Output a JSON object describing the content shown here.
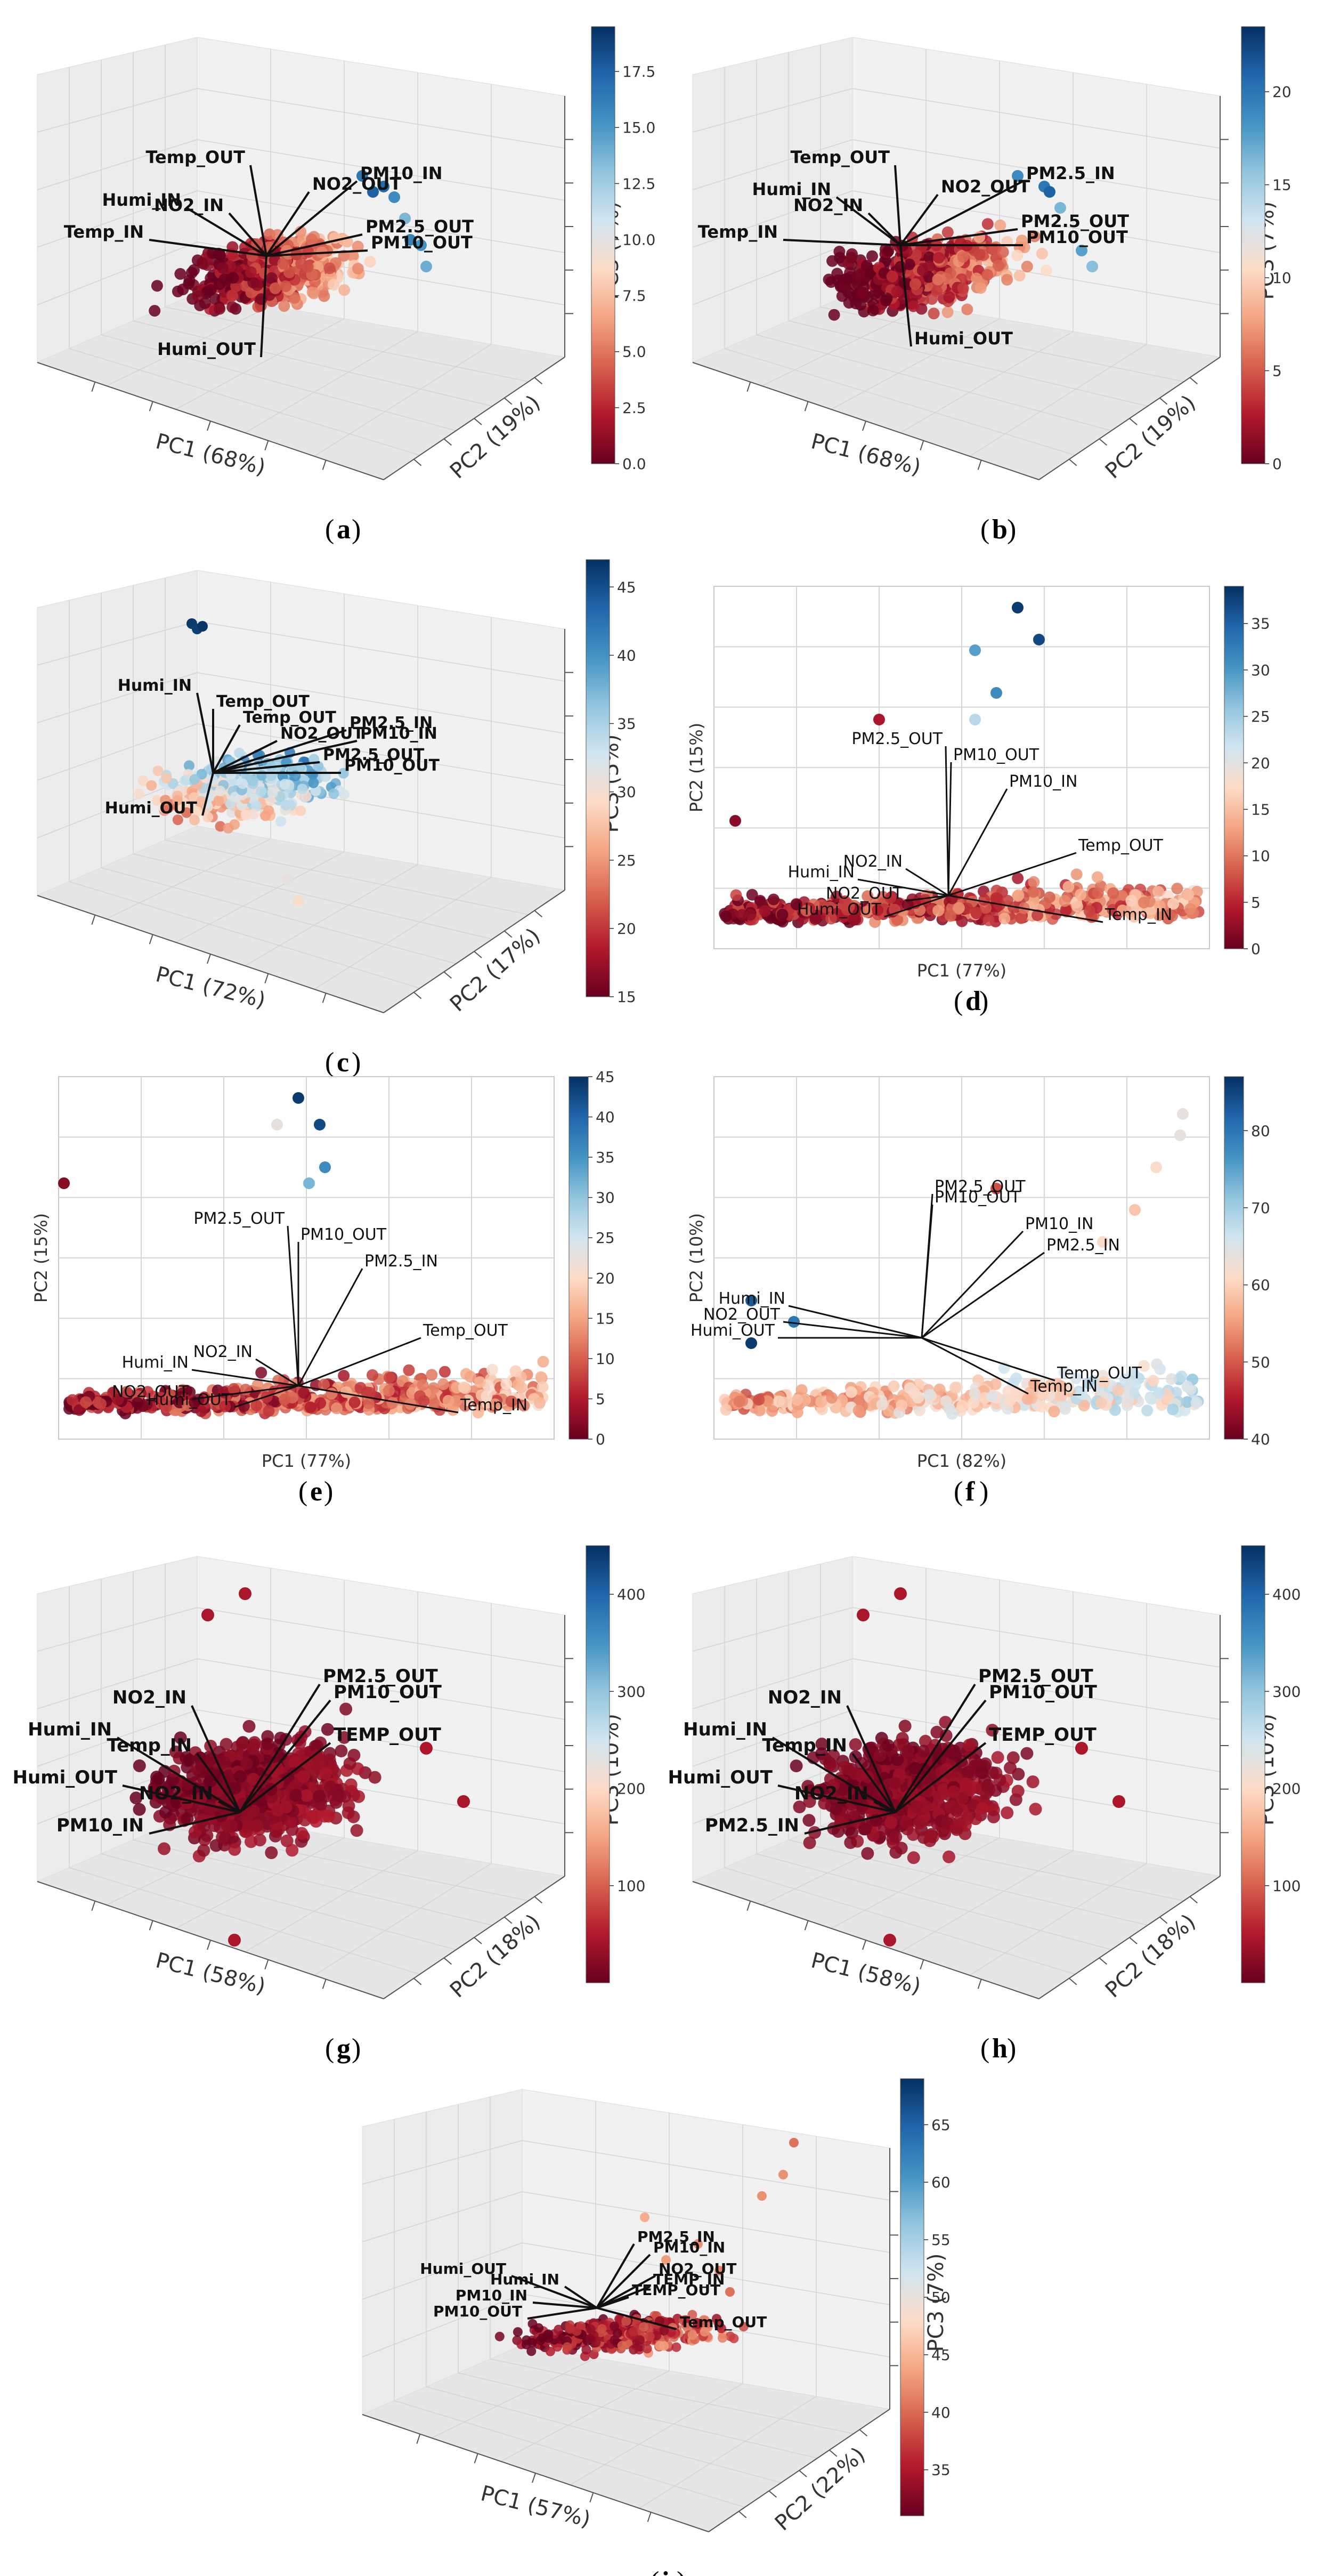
{
  "figure": {
    "panel_letters": [
      "a",
      "b",
      "c",
      "d",
      "e",
      "f",
      "g",
      "h",
      "i"
    ]
  },
  "chart_data": [
    {
      "panel": "a",
      "type": "scatter3d",
      "xlabel": "PC1 (68%)",
      "ylabel": "PC2 (19%)",
      "zlabel": "PC3 (7%)",
      "colorbar": {
        "min": 0,
        "max": 19.5,
        "ticks": [
          "0.0",
          "2.5",
          "5.0",
          "7.5",
          "10.0",
          "12.5",
          "15.0",
          "17.5"
        ]
      },
      "loadings": [
        "Temp_OUT",
        "PM10_IN",
        "NO2_OUT",
        "Humi_IN",
        "NO2_IN",
        "Temp_IN",
        "PM2.5_OUT",
        "PM10_OUT",
        "Humi_OUT"
      ]
    },
    {
      "panel": "b",
      "type": "scatter3d",
      "xlabel": "PC1 (68%)",
      "ylabel": "PC2 (19%)",
      "zlabel": "PC3 (7%)",
      "colorbar": {
        "min": 0,
        "max": 23.5,
        "ticks": [
          "0",
          "5",
          "10",
          "15",
          "20"
        ]
      },
      "loadings": [
        "Temp_OUT",
        "PM2.5_IN",
        "Humi_IN",
        "NO2_OUT",
        "NO2_IN",
        "PM2.5_OUT",
        "PM10_OUT",
        "Temp_IN",
        "Humi_OUT"
      ]
    },
    {
      "panel": "c",
      "type": "scatter3d",
      "xlabel": "PC1 (72%)",
      "ylabel": "PC2 (17%)",
      "zlabel": "PC3 (5%)",
      "colorbar": {
        "min": 15,
        "max": 47,
        "ticks": [
          "15",
          "20",
          "25",
          "30",
          "35",
          "40",
          "45"
        ]
      },
      "loadings": [
        "Humi_IN",
        "Temp_OUT",
        "Temp_OUT",
        "NO2_OUT",
        "PM2.5_IN",
        "PM10_IN",
        "PM2.5_OUT",
        "PM10_OUT",
        "Humi_OUT"
      ]
    },
    {
      "panel": "d",
      "type": "scatter",
      "xlabel": "PC1 (77%)",
      "ylabel": "PC2 (15%)",
      "colorbar": {
        "min": 0,
        "max": 39,
        "ticks": [
          "0",
          "5",
          "10",
          "15",
          "20",
          "25",
          "30",
          "35"
        ]
      },
      "loadings": [
        "PM2.5_OUT",
        "PM10_OUT",
        "PM10_IN",
        "NO2_IN",
        "Humi_IN",
        "NO2_OUT",
        "Humi_OUT",
        "Temp_OUT",
        "Temp_IN"
      ]
    },
    {
      "panel": "e",
      "type": "scatter",
      "xlabel": "PC1 (77%)",
      "ylabel": "PC2 (15%)",
      "colorbar": {
        "min": 0,
        "max": 45,
        "ticks": [
          "0",
          "5",
          "10",
          "15",
          "20",
          "25",
          "30",
          "35",
          "40",
          "45"
        ]
      },
      "loadings": [
        "PM2.5_OUT",
        "PM10_OUT",
        "PM2.5_IN",
        "NO2_IN",
        "Humi_IN",
        "NO2_OUT",
        "Humi_OUT",
        "Temp_OUT",
        "Temp_IN"
      ]
    },
    {
      "panel": "f",
      "type": "scatter",
      "xlabel": "PC1 (82%)",
      "ylabel": "PC2 (10%)",
      "colorbar": {
        "min": 40,
        "max": 87,
        "ticks": [
          "40",
          "50",
          "60",
          "70",
          "80"
        ]
      },
      "loadings": [
        "PM2.5_OUT",
        "PM10_OUT",
        "PM10_IN",
        "PM2.5_IN",
        "Humi_IN",
        "NO2_OUT",
        "Humi_OUT",
        "Temp_OUT",
        "Temp_IN"
      ]
    },
    {
      "panel": "g",
      "type": "scatter3d",
      "xlabel": "PC1 (58%)",
      "ylabel": "PC2 (18%)",
      "zlabel": "PC3 (10%)",
      "colorbar": {
        "min": 0,
        "max": 450,
        "ticks": [
          "100",
          "200",
          "300",
          "400"
        ]
      },
      "loadings": [
        "PM2.5_OUT",
        "PM10_OUT",
        "NO2_IN",
        "Humi_IN",
        "Temp_IN",
        "TEMP_OUT",
        "Humi_OUT",
        "NO2_IN",
        "PM10_IN"
      ]
    },
    {
      "panel": "h",
      "type": "scatter3d",
      "xlabel": "PC1 (58%)",
      "ylabel": "PC2 (18%)",
      "zlabel": "PC3 (10%)",
      "colorbar": {
        "min": 0,
        "max": 450,
        "ticks": [
          "100",
          "200",
          "300",
          "400"
        ]
      },
      "loadings": [
        "PM2.5_OUT",
        "PM10_OUT",
        "NO2_IN",
        "Humi_IN",
        "Temp_IN",
        "TEMP_OUT",
        "Humi_OUT",
        "NO2_IN",
        "PM2.5_IN"
      ]
    },
    {
      "panel": "i",
      "type": "scatter3d",
      "xlabel": "PC1 (57%)",
      "ylabel": "PC2 (22%)",
      "zlabel": "PC3 (7%)",
      "colorbar": {
        "min": 31,
        "max": 69,
        "ticks": [
          "35",
          "40",
          "45",
          "50",
          "55",
          "60",
          "65"
        ]
      },
      "loadings": [
        "PM2.5_IN",
        "PM10_IN",
        "Humi_OUT",
        "Humi_IN",
        "NO2_OUT",
        "TEMP_IN",
        "TEMP_OUT",
        "PM10_IN",
        "PM10_OUT",
        "Temp_OUT"
      ]
    }
  ],
  "colors": {
    "cmap": [
      "#67001f",
      "#b2182b",
      "#d6604d",
      "#f4a582",
      "#fddbc7",
      "#d1e5f0",
      "#92c5de",
      "#4393c3",
      "#2166ac",
      "#053061"
    ],
    "axis": "#444444",
    "pane": "#f2f2f2",
    "grid": "#d9d9d9",
    "arrow": "#111111"
  }
}
